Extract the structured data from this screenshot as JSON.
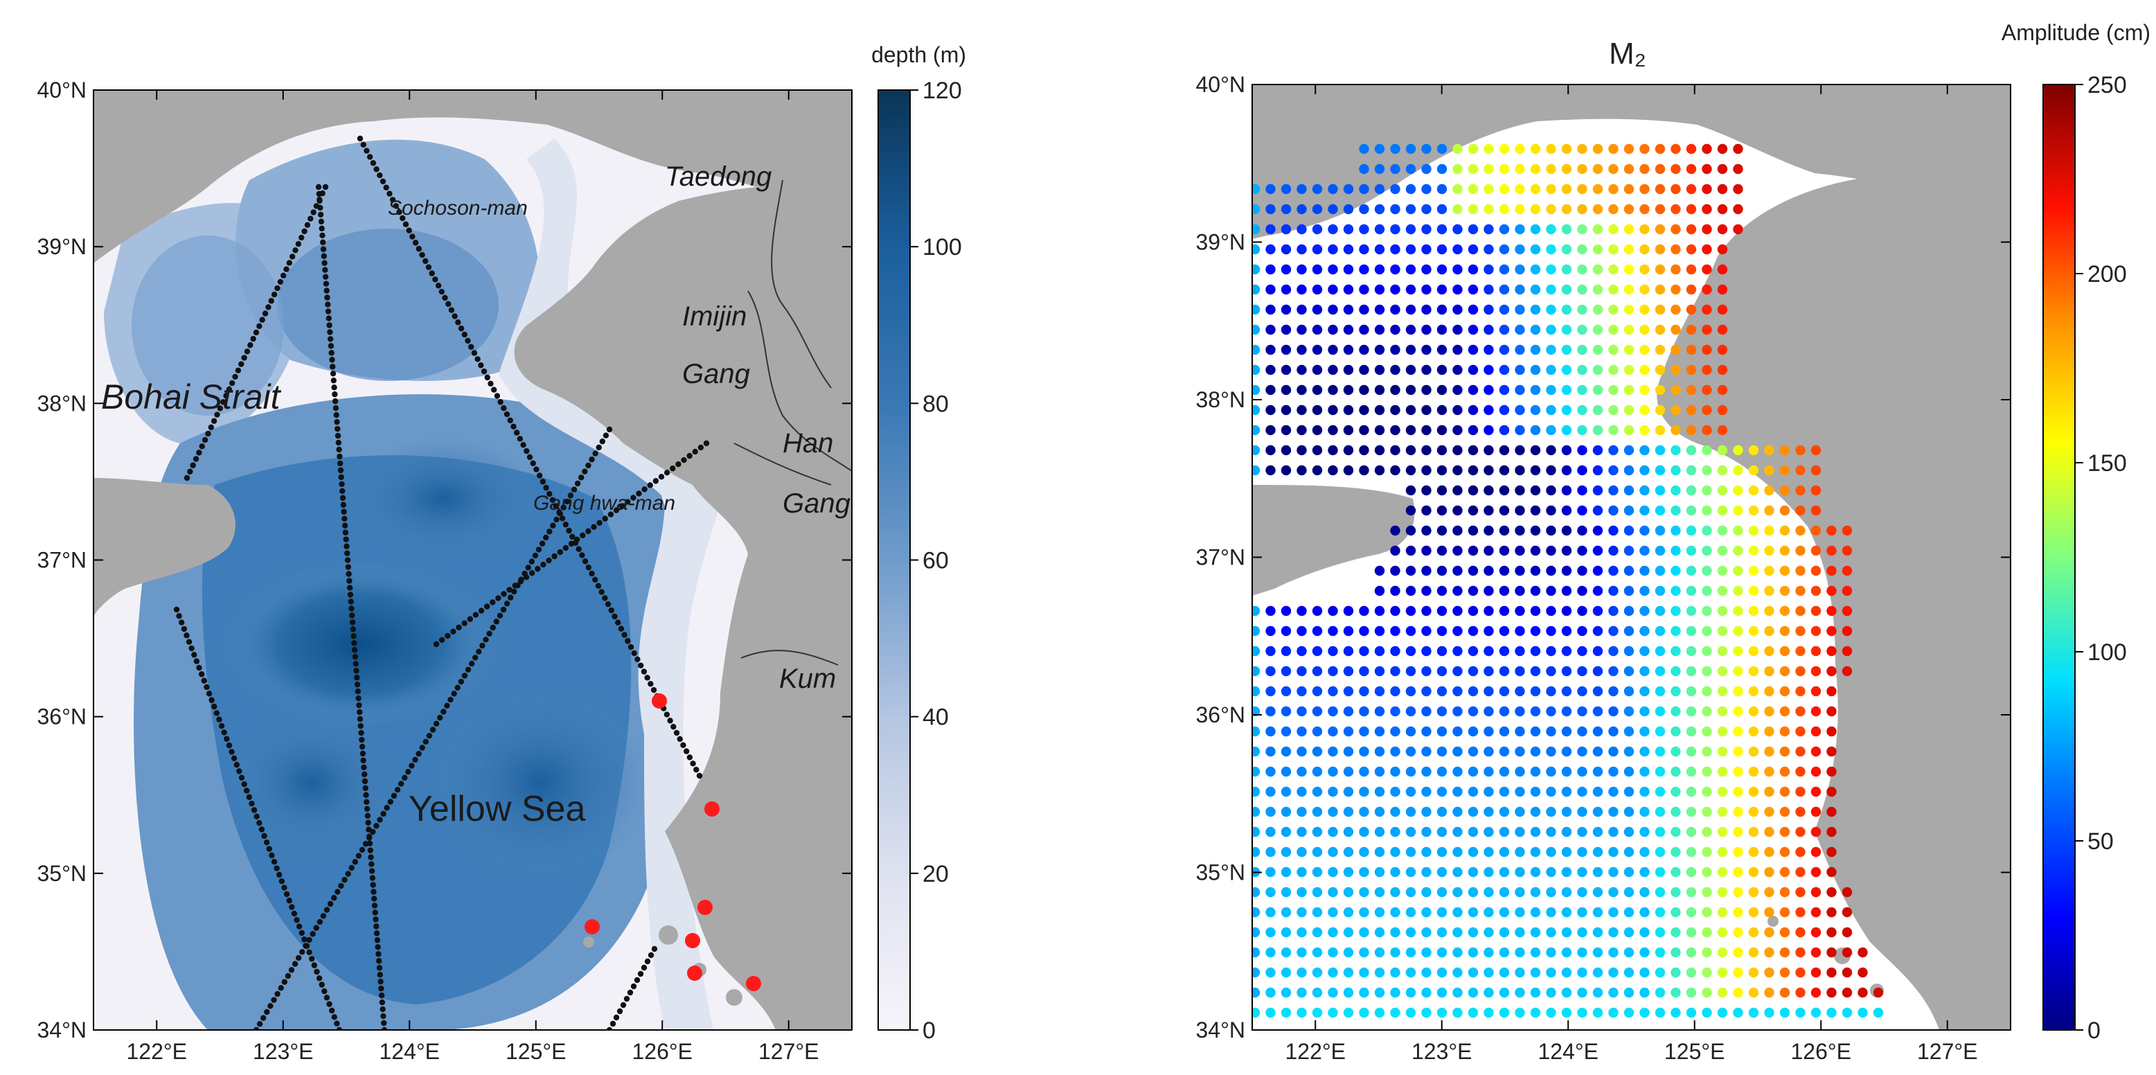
{
  "left_map": {
    "colorbar": {
      "title": "depth (m)",
      "ticks": [
        0,
        20,
        40,
        60,
        80,
        100,
        120
      ],
      "range": [
        0,
        120
      ],
      "colors": [
        "#f7f4fb",
        "#cdd6ea",
        "#9db6d9",
        "#6b98c7",
        "#3f7ab6",
        "#1c5f9f",
        "#0a3f6e"
      ]
    },
    "y_ticks": [
      "34°N",
      "35°N",
      "36°N",
      "37°N",
      "38°N",
      "39°N",
      "40°N"
    ],
    "x_ticks": [
      "122°E",
      "123°E",
      "124°E",
      "125°E",
      "126°E",
      "127°E"
    ],
    "labels": {
      "bohai": "Bohai Strait",
      "sochoson": "Sochoson-man",
      "taedong": "Taedong",
      "imijin": "Imijin",
      "gang1": "Gang",
      "han": "Han",
      "gang2": "Gang",
      "ganghwa": "Gang hwa-man",
      "kum": "Kum",
      "yellow": "Yellow Sea"
    },
    "colors": {
      "land": "#a9a9a9",
      "track": "#111111",
      "station": "#ff1a1a"
    }
  },
  "right_map": {
    "title": "M₂",
    "colorbar": {
      "title": "Amplitude (cm)",
      "ticks": [
        0,
        50,
        100,
        150,
        200,
        250
      ],
      "range": [
        0,
        250
      ],
      "colors": [
        "#00007f",
        "#0000ff",
        "#007fff",
        "#00ffff",
        "#7fff7f",
        "#ffff00",
        "#ff7f00",
        "#ff0000",
        "#7f0000"
      ]
    },
    "y_ticks": [
      "34°N",
      "35°N",
      "36°N",
      "37°N",
      "38°N",
      "39°N",
      "40°N"
    ],
    "x_ticks": [
      "122°E",
      "123°E",
      "124°E",
      "125°E",
      "126°E",
      "127°E"
    ],
    "colors": {
      "land": "#a9a9a9",
      "sea": "#ffffff"
    }
  }
}
